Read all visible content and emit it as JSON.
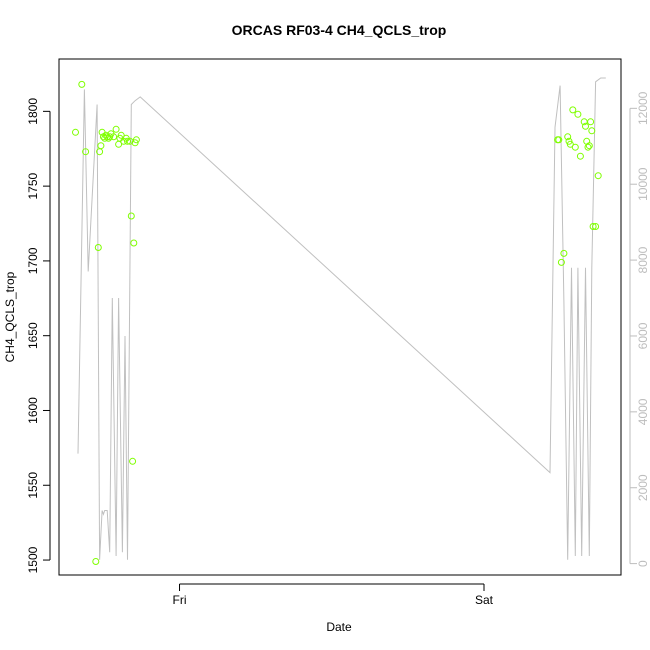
{
  "chart_data": {
    "type": "scatter",
    "title": "ORCAS RF03-4 CH4_QCLS_trop",
    "xlabel": "Date",
    "ylabel": "CH4_QCLS_trop",
    "x_ticks": [
      "Fri",
      "Sat"
    ],
    "y_ticks": [
      "1500",
      "1550",
      "1600",
      "1650",
      "1700",
      "1750",
      "1800"
    ],
    "y2_ticks": [
      "0",
      "2000",
      "4000",
      "6000",
      "8000",
      "10000",
      "12000"
    ],
    "ylim": [
      1490,
      1835
    ],
    "y2lim": [
      -300,
      13300
    ],
    "xlim_hours": [
      -9.5,
      34.8
    ],
    "grid": false,
    "colors": {
      "points": "#7fff00",
      "line": "#c0c0c0",
      "axis": "#000000",
      "axis2": "#bdbdbd"
    },
    "series": [
      {
        "kind": "points",
        "x": [
          -8.2,
          -7.7,
          -7.4,
          -6.6,
          -6.4,
          -6.3,
          -6.2,
          -6.1,
          -6.0,
          -5.9,
          -5.8,
          -5.7,
          -5.6,
          -5.5,
          -5.4,
          -5.2,
          -5.0,
          -4.8,
          -4.7,
          -4.6,
          -4.4,
          -4.2,
          -4.1,
          -3.9,
          -3.8,
          -3.7,
          -3.6,
          -3.5,
          -3.4,
          29.8,
          29.9,
          30.1,
          30.3,
          30.6,
          30.7,
          30.8,
          31.0,
          31.2,
          31.4,
          31.6,
          31.9,
          32.0,
          32.1,
          32.2,
          32.3,
          32.4,
          32.5,
          32.6,
          32.8,
          33.0
        ],
        "y": [
          1786,
          1818,
          1773,
          1499,
          1709,
          1773,
          1777,
          1786,
          1783,
          1782,
          1784,
          1783,
          1782,
          1783,
          1785,
          1783,
          1788,
          1778,
          1782,
          1784,
          1780,
          1782,
          1780,
          1780,
          1730,
          1566,
          1712,
          1779,
          1781,
          1781,
          1781,
          1699,
          1705,
          1783,
          1780,
          1778,
          1801,
          1776,
          1798,
          1770,
          1793,
          1790,
          1780,
          1776,
          1777,
          1793,
          1787,
          1723,
          1723,
          1757
        ]
      },
      {
        "kind": "line",
        "x": [
          -8.0,
          -7.5,
          -7.2,
          -6.5,
          -6.3,
          -6.1,
          -6.0,
          -5.9,
          -5.7,
          -5.5,
          -5.3,
          -5.0,
          -4.8,
          -4.5,
          -4.3,
          -4.1,
          -3.8,
          -3.5,
          -3.1,
          29.2,
          29.6,
          30.0,
          30.3,
          30.6,
          30.9,
          31.2,
          31.4,
          31.7,
          32.0,
          32.3,
          32.5,
          32.8,
          33.2,
          33.6
        ],
        "y": [
          2900,
          12500,
          7700,
          12100,
          100,
          1400,
          1300,
          1400,
          1400,
          300,
          7000,
          200,
          7000,
          300,
          6000,
          100,
          12100,
          12200,
          12300,
          2400,
          11500,
          12600,
          6900,
          100,
          7800,
          200,
          7800,
          200,
          7800,
          200,
          7800,
          12700,
          12800,
          12800
        ]
      }
    ]
  }
}
